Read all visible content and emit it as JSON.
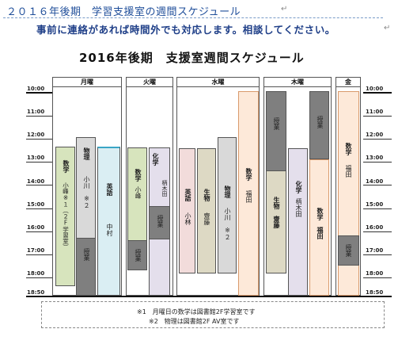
{
  "header": {
    "title": "２０１６年後期　学習支援室の週間スケジュール",
    "note": "事前に連絡があれば時間外でも対応します。相談してください。",
    "mark": "↵"
  },
  "schedule": {
    "title": "2016年後期　支援室週間スケジュール",
    "times": [
      "10:00",
      "11:00",
      "12:00",
      "13:00",
      "14:00",
      "15:00",
      "16:00",
      "17:00",
      "18:00",
      "18:50"
    ],
    "days": {
      "mon": "月曜",
      "tue": "火曜",
      "wed": "水曜",
      "thu": "木曜",
      "fri": "金"
    },
    "blocks": {
      "mon_math_subject": "数学",
      "mon_math_teacher": "小峰※１（２F学習室）",
      "mon_phys_subject": "物理",
      "mon_phys_teacher": "小川　※２",
      "mon_busy": "授業",
      "mon_eng_subject": "英語",
      "mon_eng_teacher": "中村",
      "tue_math_subject": "数学",
      "tue_math_teacher": "小峰",
      "tue_busy1": "授業",
      "tue_chem_subject": "化学",
      "tue_chem_teacher": "柄木田",
      "tue_busy2": "授業",
      "wed_eng_subject": "英語",
      "wed_eng_teacher": "小林",
      "wed_bio_subject": "生物",
      "wed_bio_teacher": "齋藤",
      "wed_phys_subject": "物理",
      "wed_phys_teacher": "小川　※２",
      "wed_math_subject": "数学",
      "wed_math_teacher": "福田",
      "thu_busy1": "授業",
      "thu_bio": "生物　齋藤",
      "thu_chem_subject": "化学",
      "thu_chem_teacher": "柄木田",
      "thu_busy2": "授業",
      "thu_math": "数学　福田",
      "fri_math_subject": "数学",
      "fri_math_teacher": "福田",
      "fri_busy": "授業"
    }
  },
  "notes": {
    "n1": "※1　月曜日の数学は図書館2F学習室です",
    "n2": "※2　物理は図書館2F AV室です"
  },
  "colors": {
    "green": "#d7e4bd",
    "dark_gray": "#7f7f7f",
    "light_gray": "#d9d9d9",
    "cyan": "#daeef3",
    "lavender": "#e4dfec",
    "pink": "#f2dcdb",
    "tan": "#ddd9c4",
    "peach": "#fde9d9"
  }
}
